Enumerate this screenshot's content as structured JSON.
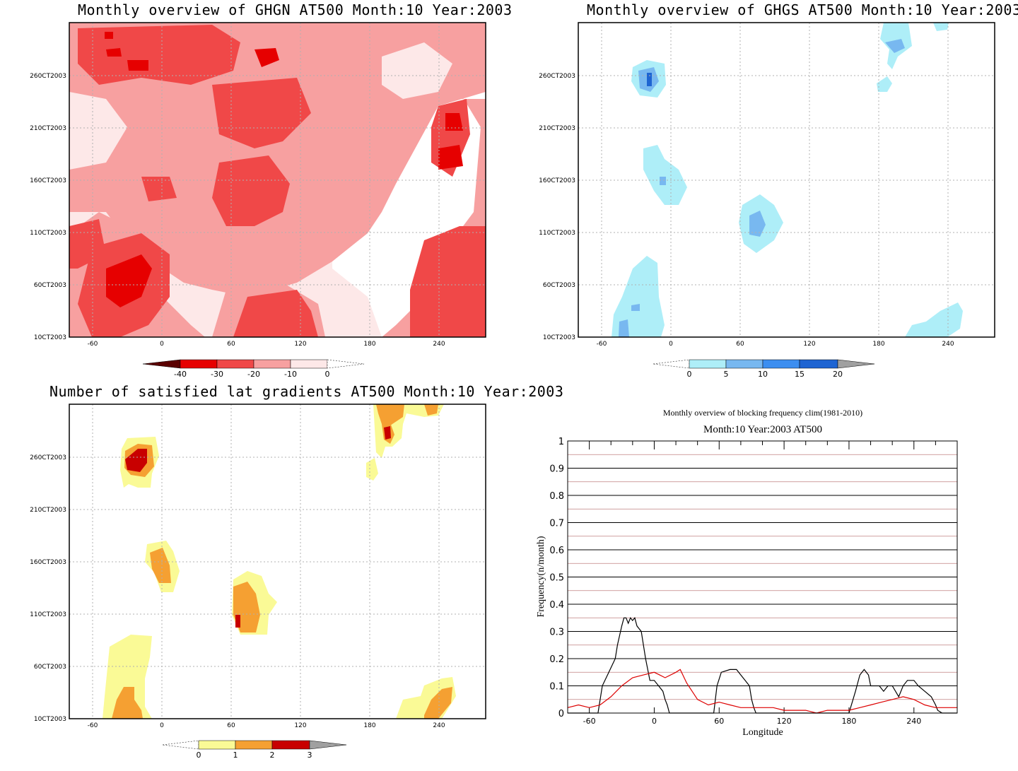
{
  "panels": {
    "ghgn": {
      "title": "Monthly overview of GHGN AT500 Month:10 Year:2003",
      "xticks": [
        "-60",
        "0",
        "60",
        "120",
        "180",
        "240"
      ],
      "yticks": [
        "10CT2003",
        "60CT2003",
        "110CT2003",
        "160CT2003",
        "210CT2003",
        "260CT2003"
      ],
      "colorbar": {
        "labels": [
          "-40",
          "-30",
          "-20",
          "-10",
          "0"
        ],
        "colors": [
          "#5a0000",
          "#e60000",
          "#f04848",
          "#f7a0a0",
          "#fde8e8"
        ]
      }
    },
    "ghgs": {
      "title": "Monthly overview of GHGS AT500 Month:10 Year:2003",
      "xticks": [
        "-60",
        "0",
        "60",
        "120",
        "180",
        "240"
      ],
      "yticks": [
        "10CT2003",
        "60CT2003",
        "110CT2003",
        "160CT2003",
        "210CT2003",
        "260CT2003"
      ],
      "colorbar": {
        "labels": [
          "0",
          "5",
          "10",
          "15",
          "20"
        ],
        "colors": [
          "#aeeef8",
          "#78b8f0",
          "#3c8ef0",
          "#1e64d2",
          "#a0a0a0"
        ]
      }
    },
    "gradients": {
      "title": "Number of satisfied lat gradients AT500 Month:10 Year:2003",
      "xticks": [
        "-60",
        "0",
        "60",
        "120",
        "180",
        "240"
      ],
      "yticks": [
        "10CT2003",
        "60CT2003",
        "110CT2003",
        "160CT2003",
        "210CT2003",
        "260CT2003"
      ],
      "colorbar": {
        "labels": [
          "0",
          "1",
          "2",
          "3"
        ],
        "colors": [
          "#fafa96",
          "#f5a032",
          "#c80000",
          "#a0a0a0"
        ]
      }
    },
    "frequency": {
      "title": "Monthly overview of blocking frequency clim(1981-2010)",
      "subtitle": "Month:10 Year:2003  AT500",
      "ylabel": "Frequency(n/month)",
      "xlabel": "Longitude"
    }
  },
  "chart_data": [
    {
      "type": "heatmap",
      "title": "Monthly overview of GHGN AT500 Month:10 Year:2003",
      "xlim": [
        -80,
        280
      ],
      "x_ticks": [
        -60,
        0,
        60,
        120,
        180,
        240
      ],
      "y_ticks": [
        "10CT2003",
        "60CT2003",
        "110CT2003",
        "160CT2003",
        "210CT2003",
        "260CT2003"
      ],
      "levels": [
        -40,
        -30,
        -20,
        -10,
        0
      ]
    },
    {
      "type": "heatmap",
      "title": "Monthly overview of GHGS AT500 Month:10 Year:2003",
      "xlim": [
        -80,
        280
      ],
      "x_ticks": [
        -60,
        0,
        60,
        120,
        180,
        240
      ],
      "levels": [
        0,
        5,
        10,
        15,
        20
      ]
    },
    {
      "type": "heatmap",
      "title": "Number of satisfied lat gradients AT500 Month:10 Year:2003",
      "xlim": [
        -80,
        280
      ],
      "x_ticks": [
        -60,
        0,
        60,
        120,
        180,
        240
      ],
      "levels": [
        0,
        1,
        2,
        3
      ]
    },
    {
      "type": "line",
      "title": "Monthly overview of blocking frequency clim(1981-2010)",
      "subtitle": "Month:10 Year:2003  AT500",
      "xlabel": "Longitude",
      "ylabel": "Frequency(n/month)",
      "xlim": [
        -80,
        280
      ],
      "ylim": [
        0,
        1
      ],
      "x_ticks": [
        -60,
        0,
        60,
        120,
        180,
        240
      ],
      "y_ticks": [
        0,
        0.1,
        0.2,
        0.3,
        0.4,
        0.5,
        0.6,
        0.7,
        0.8,
        0.9,
        1
      ],
      "series": [
        {
          "color": "#000000",
          "x": [
            -80,
            -52,
            -48,
            -42,
            -36,
            -34,
            -30,
            -28,
            -26,
            -24,
            -22,
            -20,
            -18,
            -16,
            -12,
            -8,
            -4,
            0,
            4,
            8,
            10,
            12,
            14,
            55,
            58,
            62,
            70,
            76,
            80,
            84,
            88,
            90,
            92,
            94,
            180,
            186,
            190,
            194,
            198,
            200,
            204,
            208,
            212,
            216,
            220,
            226,
            230,
            234,
            240,
            244,
            250,
            256,
            260,
            262,
            266,
            280
          ],
          "y": [
            0,
            0,
            0.1,
            0.15,
            0.2,
            0.25,
            0.32,
            0.35,
            0.35,
            0.33,
            0.35,
            0.34,
            0.35,
            0.32,
            0.3,
            0.2,
            0.12,
            0.12,
            0.1,
            0.08,
            0.05,
            0.03,
            0,
            0,
            0.1,
            0.15,
            0.16,
            0.16,
            0.14,
            0.12,
            0.1,
            0.05,
            0.02,
            0,
            0,
            0.08,
            0.14,
            0.16,
            0.14,
            0.1,
            0.1,
            0.1,
            0.08,
            0.1,
            0.1,
            0.06,
            0.1,
            0.12,
            0.12,
            0.1,
            0.08,
            0.06,
            0.03,
            0.01,
            0,
            0
          ]
        },
        {
          "color": "#dd0000",
          "x": [
            -80,
            -70,
            -60,
            -50,
            -40,
            -30,
            -20,
            -10,
            0,
            5,
            10,
            20,
            24,
            30,
            40,
            50,
            60,
            70,
            80,
            90,
            100,
            110,
            120,
            130,
            140,
            150,
            160,
            170,
            180,
            190,
            200,
            210,
            220,
            230,
            240,
            250,
            260,
            270,
            280
          ],
          "y": [
            0.02,
            0.03,
            0.02,
            0.03,
            0.06,
            0.1,
            0.13,
            0.14,
            0.15,
            0.14,
            0.13,
            0.15,
            0.16,
            0.11,
            0.05,
            0.03,
            0.04,
            0.03,
            0.02,
            0.02,
            0.02,
            0.02,
            0.01,
            0.01,
            0.01,
            0,
            0.01,
            0.01,
            0.01,
            0.02,
            0.03,
            0.04,
            0.05,
            0.06,
            0.05,
            0.03,
            0.02,
            0.02,
            0.02
          ]
        }
      ]
    }
  ]
}
